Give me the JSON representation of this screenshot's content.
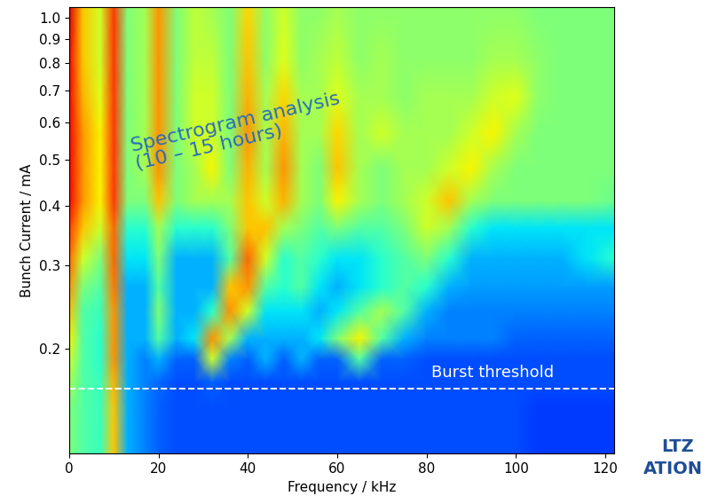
{
  "chart_data": {
    "type": "heatmap",
    "xlabel": "Frequency / kHz",
    "ylabel": "Bunch Current / mA",
    "log": "y",
    "xlim": [
      0,
      122
    ],
    "ylim": [
      0.12,
      1.05
    ],
    "xticks": [
      0,
      20,
      40,
      60,
      80,
      100,
      120
    ],
    "yticks": [
      0.2,
      0.3,
      0.4,
      0.5,
      0.6,
      0.7,
      0.8,
      0.9,
      {
        "value": 1.0,
        "label": "1.0"
      }
    ],
    "color_range": [
      0,
      1
    ],
    "x": [
      0,
      3,
      7,
      10,
      13,
      17,
      20,
      24,
      28,
      32,
      36,
      40,
      44,
      48,
      52,
      56,
      60,
      65,
      70,
      75,
      80,
      85,
      90,
      95,
      100,
      105,
      110,
      116,
      122
    ],
    "y": [
      0.12,
      0.15,
      0.17,
      0.19,
      0.21,
      0.24,
      0.27,
      0.31,
      0.36,
      0.41,
      0.48,
      0.57,
      0.68,
      0.82,
      1.05
    ],
    "values": [
      [
        0.5,
        0.45,
        0.42,
        0.7,
        0.3,
        0.25,
        0.22,
        0.2,
        0.2,
        0.2,
        0.2,
        0.2,
        0.2,
        0.2,
        0.2,
        0.2,
        0.2,
        0.2,
        0.2,
        0.2,
        0.2,
        0.2,
        0.2,
        0.2,
        0.2,
        0.18,
        0.18,
        0.18,
        0.18
      ],
      [
        0.5,
        0.45,
        0.42,
        0.7,
        0.3,
        0.25,
        0.22,
        0.2,
        0.2,
        0.2,
        0.2,
        0.2,
        0.2,
        0.2,
        0.2,
        0.2,
        0.2,
        0.2,
        0.2,
        0.2,
        0.2,
        0.2,
        0.2,
        0.2,
        0.2,
        0.18,
        0.18,
        0.18,
        0.18
      ],
      [
        0.55,
        0.45,
        0.42,
        0.72,
        0.3,
        0.25,
        0.23,
        0.2,
        0.2,
        0.22,
        0.2,
        0.2,
        0.2,
        0.2,
        0.2,
        0.2,
        0.2,
        0.2,
        0.2,
        0.2,
        0.2,
        0.2,
        0.2,
        0.2,
        0.2,
        0.2,
        0.2,
        0.2,
        0.2
      ],
      [
        0.6,
        0.45,
        0.4,
        0.75,
        0.3,
        0.25,
        0.3,
        0.22,
        0.22,
        0.6,
        0.25,
        0.22,
        0.3,
        0.22,
        0.3,
        0.22,
        0.22,
        0.45,
        0.22,
        0.22,
        0.2,
        0.2,
        0.2,
        0.2,
        0.2,
        0.2,
        0.2,
        0.2,
        0.2
      ],
      [
        0.65,
        0.45,
        0.4,
        0.75,
        0.3,
        0.3,
        0.45,
        0.3,
        0.35,
        0.75,
        0.55,
        0.3,
        0.3,
        0.3,
        0.3,
        0.35,
        0.5,
        0.65,
        0.45,
        0.3,
        0.25,
        0.25,
        0.25,
        0.25,
        0.22,
        0.22,
        0.22,
        0.22,
        0.22
      ],
      [
        0.7,
        0.45,
        0.42,
        0.75,
        0.3,
        0.3,
        0.5,
        0.3,
        0.3,
        0.4,
        0.75,
        0.6,
        0.35,
        0.35,
        0.35,
        0.3,
        0.35,
        0.45,
        0.55,
        0.45,
        0.3,
        0.25,
        0.25,
        0.25,
        0.25,
        0.25,
        0.25,
        0.25,
        0.25
      ],
      [
        0.75,
        0.5,
        0.45,
        0.78,
        0.3,
        0.3,
        0.45,
        0.3,
        0.3,
        0.3,
        0.7,
        0.75,
        0.45,
        0.4,
        0.45,
        0.35,
        0.3,
        0.35,
        0.4,
        0.45,
        0.4,
        0.3,
        0.28,
        0.28,
        0.28,
        0.28,
        0.28,
        0.28,
        0.28
      ],
      [
        0.8,
        0.6,
        0.5,
        0.8,
        0.35,
        0.35,
        0.5,
        0.3,
        0.3,
        0.3,
        0.45,
        0.8,
        0.6,
        0.4,
        0.45,
        0.4,
        0.35,
        0.35,
        0.4,
        0.45,
        0.5,
        0.4,
        0.3,
        0.3,
        0.3,
        0.3,
        0.3,
        0.35,
        0.4
      ],
      [
        0.85,
        0.7,
        0.6,
        0.8,
        0.4,
        0.4,
        0.55,
        0.4,
        0.4,
        0.4,
        0.5,
        0.7,
        0.7,
        0.55,
        0.5,
        0.45,
        0.5,
        0.45,
        0.45,
        0.5,
        0.6,
        0.55,
        0.4,
        0.35,
        0.35,
        0.35,
        0.35,
        0.35,
        0.35
      ],
      [
        0.9,
        0.75,
        0.65,
        0.85,
        0.5,
        0.5,
        0.7,
        0.5,
        0.55,
        0.55,
        0.55,
        0.7,
        0.6,
        0.72,
        0.55,
        0.5,
        0.65,
        0.55,
        0.5,
        0.55,
        0.6,
        0.7,
        0.55,
        0.5,
        0.5,
        0.5,
        0.5,
        0.5,
        0.48
      ],
      [
        0.9,
        0.75,
        0.65,
        0.85,
        0.5,
        0.55,
        0.75,
        0.5,
        0.55,
        0.65,
        0.5,
        0.72,
        0.55,
        0.75,
        0.55,
        0.5,
        0.7,
        0.55,
        0.5,
        0.55,
        0.55,
        0.6,
        0.65,
        0.55,
        0.5,
        0.5,
        0.5,
        0.5,
        0.5
      ],
      [
        0.9,
        0.75,
        0.65,
        0.85,
        0.5,
        0.55,
        0.75,
        0.5,
        0.6,
        0.6,
        0.5,
        0.75,
        0.55,
        0.72,
        0.55,
        0.55,
        0.68,
        0.55,
        0.6,
        0.55,
        0.55,
        0.55,
        0.6,
        0.65,
        0.55,
        0.5,
        0.5,
        0.5,
        0.5
      ],
      [
        0.9,
        0.72,
        0.62,
        0.85,
        0.5,
        0.55,
        0.75,
        0.5,
        0.6,
        0.6,
        0.5,
        0.72,
        0.55,
        0.68,
        0.55,
        0.55,
        0.62,
        0.55,
        0.55,
        0.52,
        0.55,
        0.55,
        0.55,
        0.6,
        0.62,
        0.52,
        0.5,
        0.5,
        0.5
      ],
      [
        0.9,
        0.7,
        0.6,
        0.85,
        0.5,
        0.55,
        0.75,
        0.5,
        0.58,
        0.58,
        0.5,
        0.7,
        0.52,
        0.62,
        0.52,
        0.55,
        0.58,
        0.52,
        0.55,
        0.52,
        0.52,
        0.52,
        0.52,
        0.55,
        0.55,
        0.52,
        0.5,
        0.5,
        0.5
      ],
      [
        0.92,
        0.7,
        0.6,
        0.85,
        0.5,
        0.55,
        0.75,
        0.5,
        0.58,
        0.55,
        0.5,
        0.68,
        0.52,
        0.6,
        0.52,
        0.52,
        0.55,
        0.52,
        0.52,
        0.52,
        0.52,
        0.52,
        0.52,
        0.52,
        0.52,
        0.5,
        0.5,
        0.5,
        0.5
      ]
    ],
    "annotations": [
      {
        "text": "Spectrogram analysis\n(10 – 15 hours)"
      },
      {
        "text": "Burst threshold",
        "y": 0.165
      }
    ],
    "logo": [
      "LTZ",
      "ATION"
    ]
  }
}
